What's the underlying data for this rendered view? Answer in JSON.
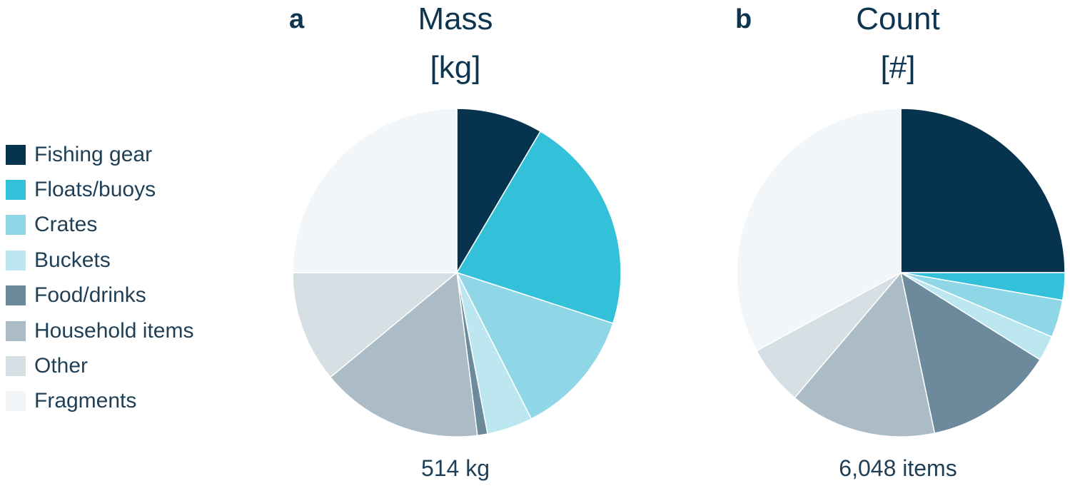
{
  "legend": {
    "items": [
      {
        "label": "Fishing gear",
        "color": "#06344f"
      },
      {
        "label": "Floats/buoys",
        "color": "#33c0d9"
      },
      {
        "label": "Crates",
        "color": "#8fd6e6"
      },
      {
        "label": "Buckets",
        "color": "#bce7f1"
      },
      {
        "label": "Food/drinks",
        "color": "#6c8a9c"
      },
      {
        "label": "Household items",
        "color": "#abbcc6"
      },
      {
        "label": "Other",
        "color": "#d6dfe3"
      },
      {
        "label": "Fragments",
        "color": "#f2f6f9"
      }
    ]
  },
  "chart_data": [
    {
      "type": "pie",
      "panel_letter": "a",
      "title": "Mass",
      "unit": "[kg]",
      "total_label": "514 kg",
      "categories": [
        "Fishing gear",
        "Floats/buoys",
        "Crates",
        "Buckets",
        "Food/drinks",
        "Household items",
        "Other",
        "Fragments"
      ],
      "values": [
        8.5,
        21.5,
        12.5,
        4.5,
        1.0,
        16.0,
        11.0,
        25.0
      ],
      "start_angle_deg": 0,
      "direction": "clockwise"
    },
    {
      "type": "pie",
      "panel_letter": "b",
      "title": "Count",
      "unit": "[#]",
      "total_label": "6,048 items",
      "categories": [
        "Fishing gear",
        "Floats/buoys",
        "Crates",
        "Buckets",
        "Food/drinks",
        "Household items",
        "Other",
        "Fragments"
      ],
      "values": [
        25.0,
        2.7,
        3.7,
        2.5,
        12.8,
        14.5,
        5.9,
        32.9
      ],
      "start_angle_deg": 0,
      "direction": "clockwise"
    }
  ]
}
